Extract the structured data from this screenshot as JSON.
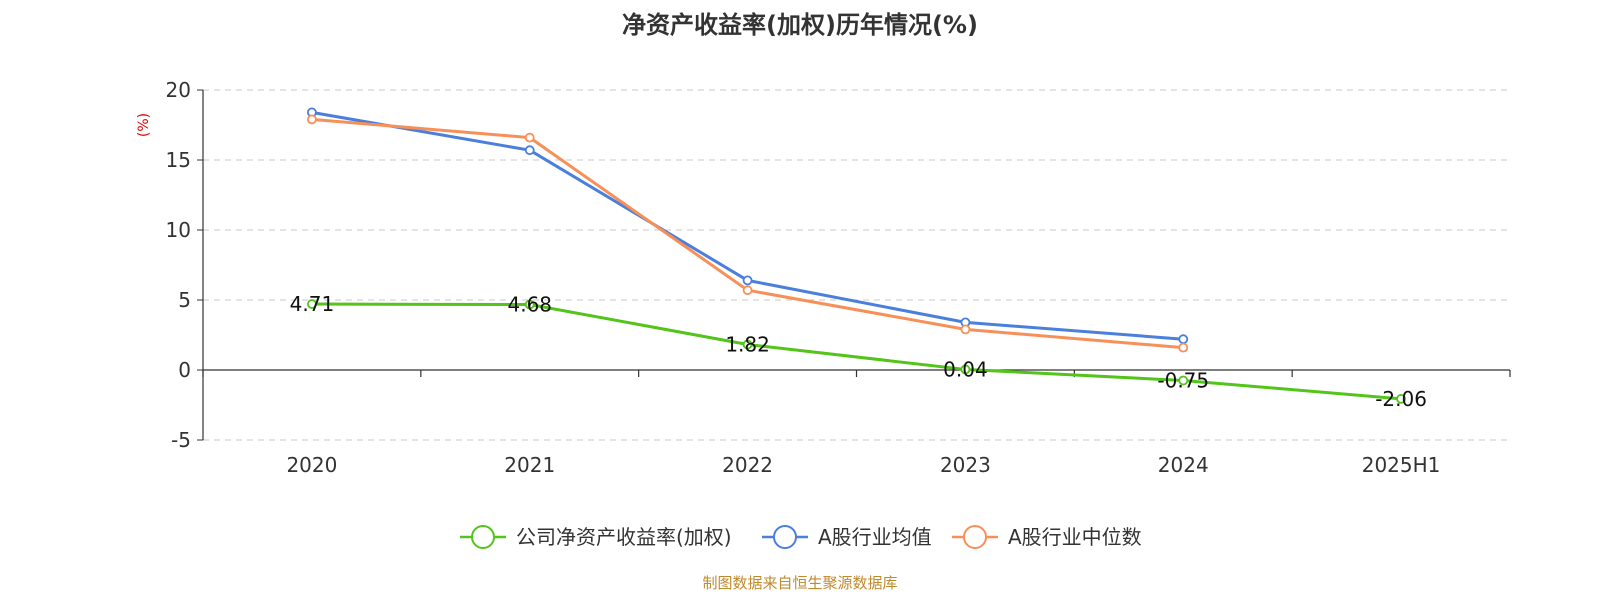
{
  "chart_data": {
    "type": "line",
    "title": "净资产收益率(加权)历年情况(%)",
    "ylabel": "(%)",
    "xlabel": "",
    "categories": [
      "2020",
      "2021",
      "2022",
      "2023",
      "2024",
      "2025H1"
    ],
    "ylim": [
      -5,
      20
    ],
    "yticks": [
      -5,
      0,
      5,
      10,
      15,
      20
    ],
    "grid": true,
    "legend_position": "bottom",
    "series": [
      {
        "name": "公司净资产收益率(加权)",
        "color": "#52c41a",
        "values": [
          4.71,
          4.68,
          1.82,
          0.04,
          -0.75,
          -2.06
        ],
        "data_labels": [
          "4.71",
          "4.68",
          "1.82",
          "0.04",
          "-0.75",
          "-2.06"
        ]
      },
      {
        "name": "A股行业均值",
        "color": "#4a7fdc",
        "values": [
          18.4,
          15.7,
          6.4,
          3.4,
          2.2,
          null
        ]
      },
      {
        "name": "A股行业中位数",
        "color": "#f79058",
        "values": [
          17.9,
          16.6,
          5.7,
          2.9,
          1.6,
          null
        ]
      }
    ]
  },
  "source": "制图数据来自恒生聚源数据库"
}
